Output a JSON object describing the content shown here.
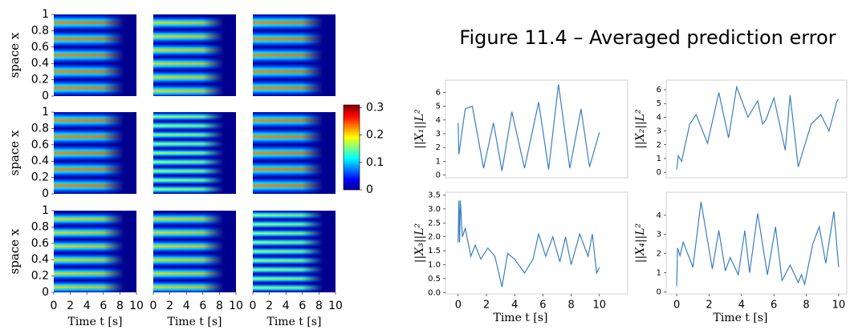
{
  "title": "Figure 11.4 – Averaged prediction error",
  "chart_data": [
    {
      "type": "heatmap",
      "xlim": [
        0,
        10
      ],
      "ylim": [
        0,
        1
      ],
      "yticks": [
        0,
        0.2,
        0.4,
        0.6,
        0.8,
        1
      ],
      "ylabel": "space x"
    },
    {
      "type": "heatmap",
      "xlim": [
        0,
        10
      ],
      "ylim": [
        0,
        1
      ]
    },
    {
      "type": "heatmap",
      "xlim": [
        0,
        10
      ],
      "ylim": [
        0,
        1
      ]
    },
    {
      "type": "heatmap",
      "xlim": [
        0,
        10
      ],
      "ylim": [
        0,
        1
      ],
      "yticks": [
        0,
        0.2,
        0.4,
        0.6,
        0.8,
        1
      ],
      "ylabel": "space x"
    },
    {
      "type": "heatmap",
      "xlim": [
        0,
        10
      ],
      "ylim": [
        0,
        1
      ]
    },
    {
      "type": "heatmap",
      "xlim": [
        0,
        10
      ],
      "ylim": [
        0,
        1
      ]
    },
    {
      "type": "heatmap",
      "xlim": [
        0,
        10
      ],
      "ylim": [
        0,
        1
      ],
      "yticks": [
        0,
        0.2,
        0.4,
        0.6,
        0.8,
        1
      ],
      "ylabel": "space x",
      "xticks": [
        0,
        2,
        4,
        6,
        8,
        10
      ],
      "xlabel": "Time t [s]"
    },
    {
      "type": "heatmap",
      "xlim": [
        0,
        10
      ],
      "ylim": [
        0,
        1
      ],
      "xticks": [
        0,
        2,
        4,
        6,
        8,
        10
      ],
      "xlabel": "Time t [s]"
    },
    {
      "type": "heatmap",
      "xlim": [
        0,
        10
      ],
      "ylim": [
        0,
        1
      ],
      "xticks": [
        0,
        2,
        4,
        6,
        8,
        10
      ],
      "xlabel": "Time t [s]"
    },
    {
      "type": "colorbar",
      "ylim": [
        0,
        0.31
      ],
      "yticks": [
        0,
        0.1,
        0.2,
        0.3
      ]
    },
    {
      "type": "line",
      "ylabel": "||X₁||L²",
      "xlim": [
        -0.9,
        12
      ],
      "ylim": [
        -0.2,
        6.9
      ],
      "yticks": [
        0,
        1,
        2,
        3,
        4,
        5,
        6
      ],
      "color": "#3a7fc0",
      "x": [
        0,
        0.05,
        0.5,
        1,
        1.8,
        2.5,
        3.1,
        3.8,
        4.7,
        5.7,
        6.4,
        7.1,
        7.9,
        8.7,
        9.3,
        10
      ],
      "values": [
        3.8,
        1.5,
        4.8,
        5,
        0.5,
        3.8,
        0.3,
        4.6,
        0.5,
        5.3,
        0.4,
        6.6,
        0.5,
        4.8,
        0.6,
        3.1
      ]
    },
    {
      "type": "line",
      "ylabel": "||X₂||L²",
      "xlim": [
        -0.65,
        10.5
      ],
      "ylim": [
        -0.4,
        6.7
      ],
      "yticks": [
        0,
        1,
        2,
        3,
        4,
        5,
        6
      ],
      "color": "#3a7fc0",
      "x": [
        0,
        0.1,
        0.3,
        0.8,
        1.2,
        1.9,
        2.6,
        3.2,
        3.7,
        4.4,
        5,
        5.3,
        5.5,
        6,
        6.7,
        7,
        7.5,
        8.3,
        8.9,
        9.4,
        9.9,
        10
      ],
      "values": [
        0.2,
        1.2,
        0.8,
        3.5,
        4.2,
        2.1,
        5.8,
        2.5,
        6.2,
        4,
        5.2,
        3.5,
        3.8,
        5.4,
        1.6,
        5.6,
        0.4,
        3.5,
        4.2,
        3,
        5.2,
        5.3
      ]
    },
    {
      "type": "line",
      "ylabel": "||X₃||L²",
      "xlim": [
        -0.9,
        12
      ],
      "ylim": [
        -0.05,
        3.6
      ],
      "xticks": [
        0,
        2,
        4,
        6,
        8,
        10
      ],
      "xlabel": "Time t [s]",
      "color": "#3a7fc0",
      "yticks": [
        {
          "value": 0,
          "label": "0.0"
        },
        {
          "value": 0.5,
          "label": "0.5"
        },
        {
          "value": 1,
          "label": "1.0"
        },
        {
          "value": 1.5,
          "label": "1.5"
        },
        {
          "value": 2,
          "label": "2.0"
        },
        {
          "value": 2.5,
          "label": "2.5"
        },
        {
          "value": 3,
          "label": "3.0"
        },
        3.5
      ],
      "x": [
        0,
        0.05,
        0.1,
        0.15,
        0.3,
        0.5,
        0.9,
        1.2,
        1.6,
        2.1,
        2.6,
        3.1,
        3.5,
        4,
        4.7,
        5.3,
        5.7,
        6.2,
        6.7,
        7.2,
        7.6,
        8,
        8.6,
        9.2,
        9.5,
        9.8,
        10
      ],
      "values": [
        1.8,
        3.3,
        1.8,
        3.3,
        2,
        2.3,
        1.3,
        1.7,
        1.2,
        1.6,
        1.3,
        0.2,
        1.4,
        1.2,
        0.7,
        1.2,
        2.1,
        1.3,
        2,
        1.1,
        2,
        1,
        2.1,
        1.3,
        2.1,
        0.7,
        0.9
      ]
    },
    {
      "type": "line",
      "ylabel": "||X₄||L²",
      "xlim": [
        -0.65,
        10.5
      ],
      "ylim": [
        -0.1,
        5.2
      ],
      "yticks": [
        0,
        1,
        2,
        3,
        4
      ],
      "xticks": [
        0,
        2,
        4,
        6,
        8,
        10
      ],
      "xlabel": "Time t [s]",
      "color": "#3a7fc0",
      "x": [
        0,
        0.05,
        0.2,
        0.4,
        1,
        1.5,
        2.2,
        2.6,
        3,
        3.3,
        3.8,
        4.2,
        4.5,
        5,
        5.6,
        6.1,
        6.5,
        7,
        7.5,
        7.7,
        7.9,
        8.4,
        8.8,
        9.2,
        9.7,
        10
      ],
      "values": [
        0.3,
        2.3,
        1.9,
        2.6,
        1.3,
        4.7,
        1.2,
        3.2,
        1.1,
        1.8,
        0.9,
        3.2,
        1,
        4.1,
        0.9,
        3.4,
        0.6,
        1.4,
        0.5,
        0.9,
        0.4,
        2.5,
        3.4,
        1.5,
        4.2,
        1.3
      ]
    }
  ]
}
